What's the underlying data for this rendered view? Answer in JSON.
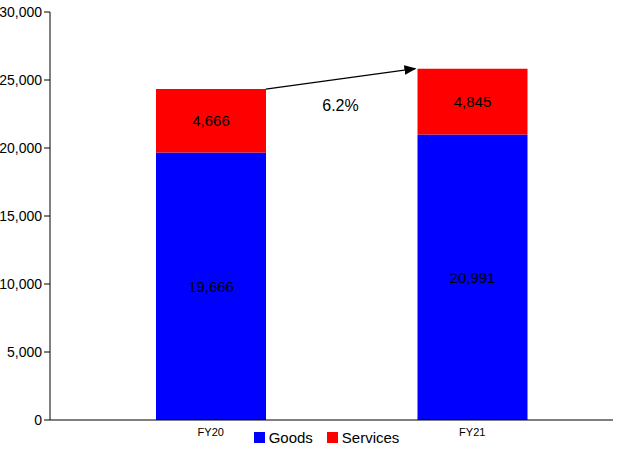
{
  "chart_data": {
    "type": "bar",
    "stacked": true,
    "categories": [
      "FY20",
      "FY21"
    ],
    "series": [
      {
        "name": "Goods",
        "color": "#0000ff",
        "values": [
          19666,
          20991
        ],
        "value_labels": [
          "19,666",
          "20,991"
        ]
      },
      {
        "name": "Services",
        "color": "#ff0000",
        "values": [
          4666,
          4845
        ],
        "value_labels": [
          "4,666",
          "4,845"
        ]
      }
    ],
    "ylim": [
      0,
      30000
    ],
    "yticks": [
      0,
      {
        "value": 5000,
        "label": "5,000"
      },
      {
        "value": 10000,
        "label": "10,000"
      },
      {
        "value": 15000,
        "label": "15,000"
      },
      {
        "value": 20000,
        "label": "20,000"
      },
      {
        "value": 25000,
        "label": "25,000"
      },
      {
        "value": 30000,
        "label": "30,000"
      }
    ],
    "data_labels": true,
    "legend": "bottom",
    "grid": false,
    "annotation": "6.2%"
  }
}
